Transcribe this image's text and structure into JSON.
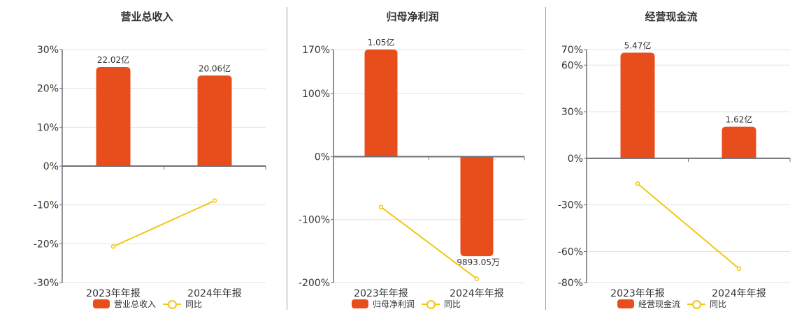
{
  "colors": {
    "bar": "#e84e1c",
    "line": "#f2c811",
    "grid": "#dde3ee",
    "axis": "#6e6e78",
    "separator": "#a0a0a0",
    "text": "#333333"
  },
  "legend_line_label": "同比",
  "chart_data": [
    {
      "type": "bar",
      "title": "营业总收入",
      "categories": [
        "2023年年报",
        "2024年年报"
      ],
      "series": [
        {
          "name": "营业总收入",
          "type": "bar",
          "values": [
            25.5,
            23.3
          ],
          "labels": [
            "22.02亿",
            "20.06亿"
          ]
        },
        {
          "name": "同比",
          "type": "line",
          "values": [
            -20.7,
            -8.9
          ]
        }
      ],
      "yticks": [
        "30%",
        "20%",
        "10%",
        "0%",
        "-10%",
        "-20%",
        "-30%"
      ],
      "ytick_values": [
        30,
        20,
        10,
        0,
        -10,
        -20,
        -30
      ],
      "ylim": [
        -30,
        30
      ],
      "xlabel": "",
      "ylabel": "",
      "grid": true,
      "legend_position": "bottom"
    },
    {
      "type": "bar",
      "title": "归母净利润",
      "categories": [
        "2023年年报",
        "2024年年报"
      ],
      "series": [
        {
          "name": "归母净利润",
          "type": "bar",
          "values": [
            170,
            -158
          ],
          "labels": [
            "1.05亿",
            "-9893.05万"
          ]
        },
        {
          "name": "同比",
          "type": "line",
          "values": [
            -80,
            -194
          ]
        }
      ],
      "yticks": [
        "170%",
        "100%",
        "0%",
        "-100%",
        "-200%"
      ],
      "ytick_values": [
        170,
        100,
        0,
        -100,
        -200
      ],
      "ylim": [
        -200,
        170
      ],
      "xlabel": "",
      "ylabel": "",
      "grid": true,
      "legend_position": "bottom"
    },
    {
      "type": "bar",
      "title": "经营现金流",
      "categories": [
        "2023年年报",
        "2024年年报"
      ],
      "series": [
        {
          "name": "经营现金流",
          "type": "bar",
          "values": [
            68,
            20.3
          ],
          "labels": [
            "5.47亿",
            "1.62亿"
          ]
        },
        {
          "name": "同比",
          "type": "line",
          "values": [
            -16.3,
            -71
          ]
        }
      ],
      "yticks": [
        "70%",
        "60%",
        "30%",
        "0%",
        "-30%",
        "-60%",
        "-80%"
      ],
      "ytick_values": [
        70,
        60,
        30,
        0,
        -30,
        -60,
        -80
      ],
      "ylim": [
        -80,
        70
      ],
      "xlabel": "",
      "ylabel": "",
      "grid": true,
      "legend_position": "bottom"
    }
  ]
}
